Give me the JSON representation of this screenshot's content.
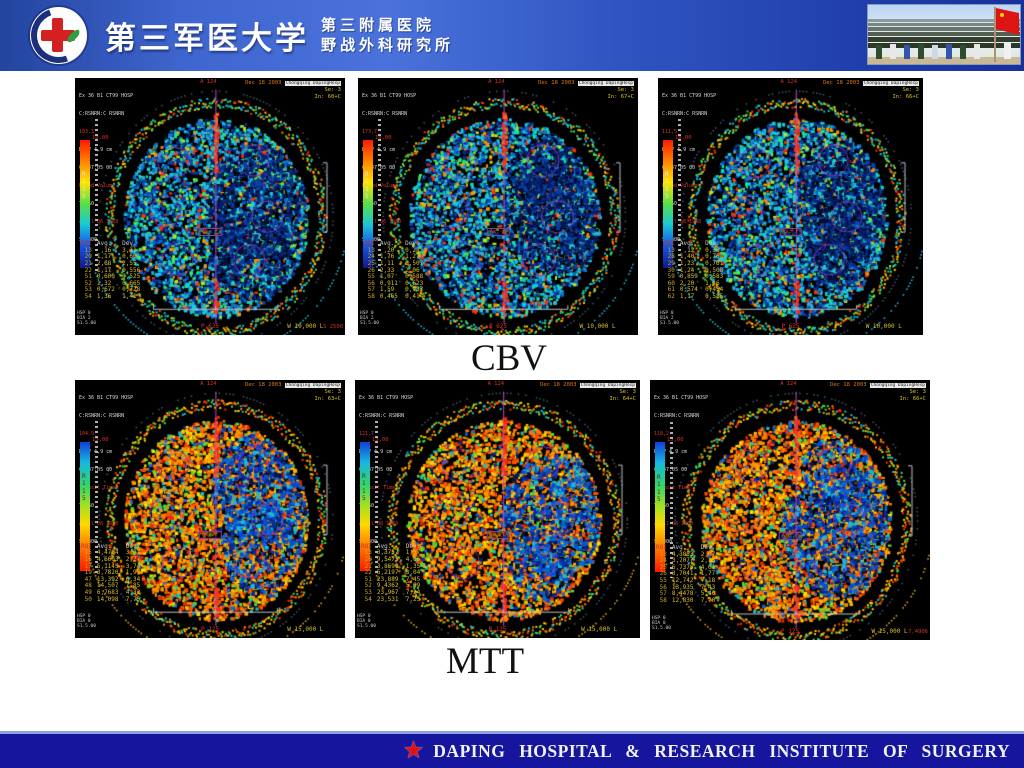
{
  "header": {
    "university": "第三军医大学",
    "affiliate_line1": "第三附属医院",
    "affiliate_line2": "野战外科研究所",
    "logo_icon": "hospital-cross-emblem",
    "photo_icon": "military-parade-photo"
  },
  "labels": {
    "row1": "CBV",
    "row2": "MTT"
  },
  "footer": {
    "text": "DAPING  HOSPITAL  &  RESEARCH  INSTITUTE  OF  SURGERY",
    "star_icon": "red-star"
  },
  "colors": {
    "header_blue": "#3f66cf",
    "footer_blue": "#15159e",
    "accent_red": "#e03028",
    "overlay_yellow": "#d8c028",
    "midline_magenta": "#c048c8"
  },
  "scans": [
    {
      "id": "cbv-1",
      "type": "CBV",
      "st1": "Ex 36 B1 CT99 HOSP",
      "st2": "C:RSNRN:C RSNRN",
      "idv": "103,3",
      "dfov": "DFOV 4,9 cm",
      "timev": "09:47:05 00",
      "map": "Blood Volume",
      "tf": "TF 60",
      "dob": "April 06 1968",
      "sp": "SP 300",
      "date": "Dec 18 2003",
      "facility": "Chongqing DapingHosp",
      "se": "Se: 3",
      "inr": "In: 60+C",
      "orient": "A 124",
      "scale": "10,00",
      "bar": "R\n1\n1\n5",
      "ax": "Ax: F",
      "roi": "ROI\n 13\n 20\n 21\n 22\n 51\n 52\n 53\n 54",
      "val": "Avg.   Dev.\n ,16   3,11\n1,17   0,60\n2,68   2,55\n1,17   0,556\n0,600  0,525\n1,32   0,665\n0,672  0,728\n1,36   1,41",
      "pbot": "P 625",
      "wl": "W 10,000 L",
      "rcorner": "S 2500",
      "sys": "HSP 0\nBIA 2\nS1.5.00"
    },
    {
      "id": "cbv-2",
      "type": "CBV",
      "st1": "Ex 36 B1 CT99 HOSP",
      "st2": "C:RSNRN:C RSNRN",
      "idv": "173,7",
      "dfov": "DFOV 4,9 cm",
      "timev": "09:47:05 00",
      "map": "Blood Volume",
      "tf": "TF 60",
      "dob": "April 06 1968",
      "sp": "SP 300",
      "date": "Dec 18 2003",
      "facility": "Chongqing DapingHosp",
      "se": "Se: 3",
      "inr": "In: 67+C",
      "orient": "A 124",
      "scale": "10,00",
      "bar": "R\n1\n1\n5",
      "ax": "Ax: F",
      "roi": "ROI\n 13\n 24\n 25\n 26\n 55\n 56\n 57\n 58",
      "val": "Avg.   Dev.\n ,20   0,28\n1,76   1,27\n1,11   0,507\n2,33   2,06\n1,07   0,588\n0,911  0,623\n1,59   0,987\n0,465  0,414",
      "pbot": "P 625",
      "wl": "W 10,000 L",
      "rcorner": "",
      "sys": "HSP 0\nBIA 2\nS1.5.00"
    },
    {
      "id": "cbv-3",
      "type": "CBV",
      "st1": "Ex 36 B1 CT99 HOSP",
      "st2": "C:RSNRN:C RSNRN",
      "idv": "111,5",
      "dfov": "DFOV 4,9 cm",
      "timev": "09:47:05 00",
      "map": "Blood Volume",
      "tf": "TF 60",
      "dob": "April 06 1968",
      "sp": "SP 300",
      "date": "Dec 18 2003",
      "facility": "Chongqing DapingHosp",
      "se": "Se: 3",
      "inr": "In: 66+C",
      "orient": "A 124",
      "scale": "10,00",
      "bar": "R\n1\n1\n5",
      "ax": "Ax: F",
      "roi": "ROI\n 13\n 28\n 29\n 30\n 59\n 60\n 61\n 62",
      "val": "Avg.   Dev.\n ,12   0,38\n1,40   0,76\n1,23   0,761\n1,24   0,508\n0,859  0,583\n2,20   1,46\n0,574  0,454\n1,17   0,585",
      "pbot": "P 625",
      "wl": "W 10,000 L",
      "rcorner": "",
      "sys": "HSP 0\nBIA 2\nS1.5.00"
    },
    {
      "id": "mtt-1",
      "type": "MTT",
      "st1": "Ex 36 B1 CT99 HOSP",
      "st2": "C:RSNRN:C RSNRN",
      "idv": "104,9",
      "dfov": "DFOV 4,9 cm",
      "timev": "09:47:05 00",
      "map": "Transit Time",
      "tf": "TF 60",
      "dob": "April 06 1968",
      "sp": "SP 300",
      "date": "Dec 18 2003",
      "facility": "Chongqing DapingHosp",
      "se": "Se: 3",
      "inr": "In: 63+C",
      "orient": "A 124",
      "scale": "15,00",
      "bar": "R\n1\n1\n5",
      "ax": "Ax: F",
      "roi": "ROI\n 15\n 16\n 17\n 19\n 47\n 48\n 49\n 50",
      "val": "Avg.    Dev.\n4,4704  3,07\n4,6603  2,77\n5,1145  3,74\n3,7820  1,97\n13,392  6,34\n14,507  7,85\n6,7683  4,32\n14,098  7,75",
      "pbot": "P 125",
      "wl": "W 15,000 L",
      "rcorner": "",
      "sys": "HSP 0\nBIA 0\nS1.5.00"
    },
    {
      "id": "mtt-2",
      "type": "MTT",
      "st1": "Ex 36 B1 CT99 HOSP",
      "st2": "C:RSNRN:C RSNRN",
      "idv": "121,7",
      "dfov": "DFOV 4,9 cm",
      "timev": "09:47:05 00",
      "map": "Transit Time",
      "tf": "TF 60",
      "dob": "April 06 1968",
      "sp": "SP 300",
      "date": "Dec 18 2003",
      "facility": "Chongqing DapingHosp",
      "se": "Se: 3",
      "inr": "In: 64+C",
      "orient": "A 124",
      "scale": "15,00",
      "bar": "R\n1\n1\n5",
      "ax": "Ax: F",
      "roi": "ROI\n 13\n 20\n 21\n 22\n 51\n 52\n 53\n 54",
      "val": "Avg.    Dev.\n3,3757  1,57\n9,5473  4,06\n3,8690  1,35\n5,2197  3,04\n23,889  7,45\n9,4362  5,69\n23,967  7,24\n23,531  7,25",
      "pbot": "P 125",
      "wl": "W 15,000 L",
      "rcorner": "",
      "sys": "HSP 0\nBIA 0\nS1.5.00"
    },
    {
      "id": "mtt-3",
      "type": "MTT",
      "st1": "Ex 36 B1 CT99 HOSP",
      "st2": "C:RSNRN:C RSNRN",
      "idv": "118,2",
      "dfov": "DFOV 4,9 cm",
      "timev": "09:47:05 00",
      "map": "Transit Time",
      "tf": "TF 60",
      "dob": "April 06 1968",
      "sp": "SP 300",
      "date": "Dec 18 2003",
      "facility": "Chongqing DapingHosp",
      "se": "Se: 3",
      "inr": "In: 66+C",
      "orient": "A 124",
      "scale": "15,00",
      "bar": "R\n1\n1\n5",
      "ax": "Ax: F",
      "roi": "ROI\n 13\n 24\n 25\n 26\n 55\n 56\n 57\n 58",
      "val": "Avg.    Dev.\n4,3853  2,07\n3,7077  2,13\n6,7378  4,01\n3,7041  1,77\n12,742  7,18\n13,935  7,43\n8,4478  5,46\n12,830  7,70",
      "pbot": "P 125",
      "wl": "W 15,000 L",
      "rcorner": "7,4906",
      "sys": "HSP 0\nBIA 0\nS1.5.00"
    }
  ]
}
